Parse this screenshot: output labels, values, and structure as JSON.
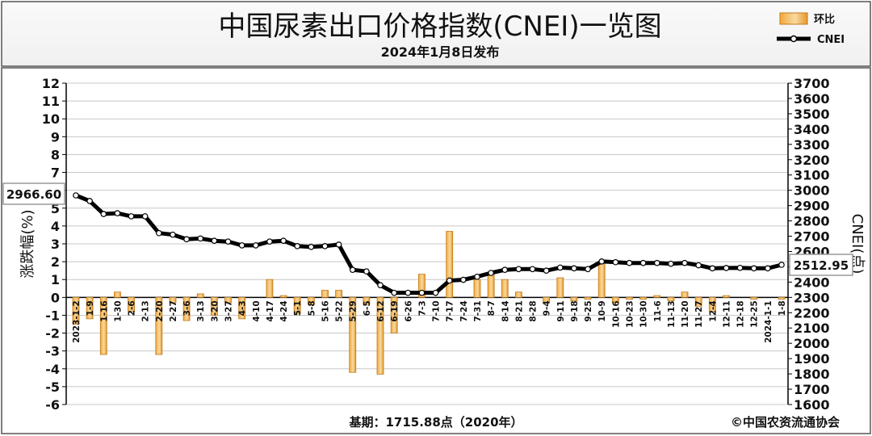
{
  "chart_data": {
    "type": "bar+line",
    "title": "中国尿素出口价格指数(CNEI)一览图",
    "subtitle": "2024年1月8日发布",
    "ylabel_left": "涨跌幅(%)",
    "ylabel_right": "CNEI(点)",
    "ylim_left": [
      -6,
      12
    ],
    "ylim_right": [
      1600,
      3700
    ],
    "yticks_left": [
      "12",
      "11",
      "10",
      "9",
      "8",
      "7",
      "6",
      "5",
      "4",
      "3",
      "2",
      "1",
      "0",
      "-1",
      "-2",
      "-3",
      "-4",
      "-5",
      "-6"
    ],
    "yticks_right": [
      "3700",
      "3600",
      "3500",
      "3400",
      "3300",
      "3200",
      "3100",
      "3000",
      "2900",
      "2800",
      "2700",
      "2600",
      "2500",
      "2400",
      "2300",
      "2200",
      "2100",
      "2000",
      "1900",
      "1800",
      "1700",
      "1600"
    ],
    "grid": true,
    "legend": {
      "position": "top-right",
      "bar_label": "环比",
      "line_label": "CNEI"
    },
    "categories": [
      "2023-1-2",
      "1-9",
      "1-16",
      "1-30",
      "2-6",
      "2-13",
      "2-20",
      "2-27",
      "3-6",
      "3-13",
      "3-20",
      "3-27",
      "4-3",
      "4-10",
      "4-17",
      "4-24",
      "5-1",
      "5-8",
      "5-16",
      "5-22",
      "5-29",
      "6-5",
      "6-12",
      "6-19",
      "6-26",
      "7-3",
      "7-10",
      "7-17",
      "7-24",
      "7-31",
      "8-7",
      "8-14",
      "8-21",
      "8-28",
      "9-4",
      "9-11",
      "9-18",
      "9-25",
      "10-9",
      "10-16",
      "10-23",
      "10-30",
      "11-6",
      "11-13",
      "11-20",
      "11-27",
      "12-4",
      "12-11",
      "12-18",
      "12-25",
      "2024-1-1",
      "1-8"
    ],
    "series": [
      {
        "name": "环比",
        "type": "bar",
        "values": [
          -1.5,
          -1.2,
          -3.2,
          0.3,
          -0.8,
          0.0,
          -3.2,
          -0.3,
          -1.3,
          0.2,
          -1.0,
          -0.3,
          -1.2,
          0.0,
          1.0,
          0.1,
          -0.9,
          -0.4,
          0.4,
          0.4,
          -4.2,
          -0.4,
          -4.3,
          -2.0,
          0.0,
          1.3,
          0.0,
          3.7,
          0.0,
          1.0,
          1.3,
          1.0,
          0.3,
          0.0,
          -0.3,
          1.1,
          -0.2,
          -0.1,
          2.0,
          -0.3,
          -0.1,
          -0.1,
          0.1,
          -0.2,
          0.3,
          -0.5,
          -0.8,
          0.1,
          0.0,
          -0.1,
          0.0,
          -0.1
        ]
      },
      {
        "name": "CNEI",
        "type": "line",
        "values": [
          2966.6,
          2930,
          2845,
          2850,
          2830,
          2830,
          2720,
          2710,
          2680,
          2685,
          2670,
          2665,
          2640,
          2640,
          2665,
          2670,
          2635,
          2630,
          2635,
          2645,
          2480,
          2470,
          2380,
          2330,
          2330,
          2330,
          2330,
          2410,
          2415,
          2435,
          2460,
          2480,
          2485,
          2485,
          2475,
          2495,
          2490,
          2485,
          2535,
          2530,
          2525,
          2525,
          2525,
          2520,
          2525,
          2510,
          2490,
          2492,
          2493,
          2490,
          2490,
          2512.95
        ]
      }
    ],
    "annotations": {
      "first_value": "2966.60",
      "last_value": "2512.95"
    },
    "footer_base": "基期：1715.88点（2020年）",
    "copyright": "©中国农资流通协会"
  }
}
